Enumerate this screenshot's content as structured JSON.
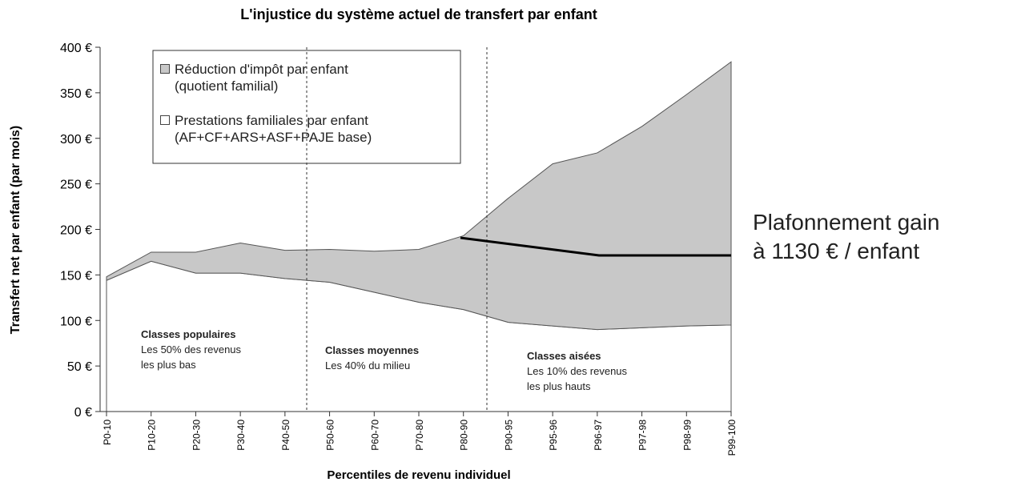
{
  "chart_data": {
    "type": "stacked_area",
    "title": "L'injustice du système actuel de transfert par enfant",
    "x_label": "Percentiles de revenu individuel",
    "y_label": "Transfert net par enfant (par mois)",
    "categories": [
      "P0-10",
      "P10-20",
      "P20-30",
      "P30-40",
      "P40-50",
      "P50-60",
      "P60-70",
      "P70-80",
      "P80-90",
      "P90-95",
      "P95-96",
      "P96-97",
      "P97-98",
      "P98-99",
      "P99-100"
    ],
    "series": [
      {
        "name": "Prestations familiales par enfant\n(AF+CF+ARS+ASF+PAJE base)",
        "color": "#ffffff",
        "values": [
          144,
          165,
          152,
          152,
          146,
          142,
          131,
          120,
          112,
          98,
          94,
          90,
          92,
          94,
          95
        ]
      },
      {
        "name": "Réduction d'impôt par enfant\n(quotient familial)",
        "color": "#c8c8c8",
        "values": [
          4,
          10,
          23,
          33,
          31,
          36,
          45,
          58,
          81,
          136,
          178,
          194,
          221,
          254,
          289
        ]
      }
    ],
    "ylim": [
      0,
      400
    ],
    "yticks": [
      {
        "value": 0,
        "label": "0 €"
      },
      {
        "value": 50,
        "label": "50 €"
      },
      {
        "value": 100,
        "label": "100 €"
      },
      {
        "value": 150,
        "label": "150 €"
      },
      {
        "value": 200,
        "label": "200 €"
      },
      {
        "value": 250,
        "label": "250 €"
      },
      {
        "value": 300,
        "label": "300 €"
      },
      {
        "value": 350,
        "label": "350 €"
      },
      {
        "value": 400,
        "label": "400 €"
      }
    ],
    "grid": false,
    "annotations": [
      {
        "title": "Classes populaires",
        "text": "Les 50% des revenus\nles plus bas"
      },
      {
        "title": "Classes moyennes",
        "text": "Les 40% du milieu"
      },
      {
        "title": "Classes aisées",
        "text": "Les 10% des revenus\nles plus hauts"
      }
    ],
    "callout": "Plafonnement gain\nà 1130 € / enfant"
  }
}
